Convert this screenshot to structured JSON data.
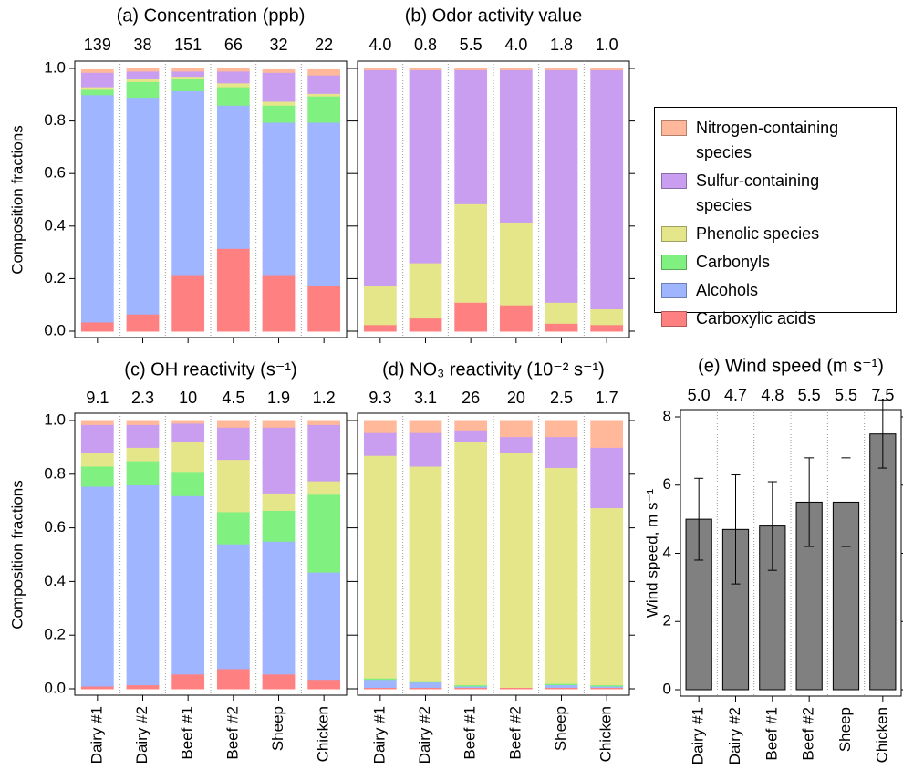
{
  "chart_data": [
    {
      "type": "stacked_bar",
      "title": "(a)  Concentration (ppb)",
      "ylabel": "Composition fractions",
      "top_labels": [
        "139",
        "38",
        "151",
        "66",
        "32",
        "22"
      ],
      "ylim": [
        0,
        1
      ],
      "yticks": [
        {
          "value": 0,
          "label": "0.0"
        },
        0.2,
        0.4,
        0.6,
        0.8,
        {
          "value": 1,
          "label": "1.0"
        }
      ],
      "ytick_labels": true,
      "series": [
        {
          "name": "Carboxylic acids",
          "color": "#ff8080",
          "values": [
            0.035,
            0.065,
            0.215,
            0.315,
            0.215,
            0.175
          ]
        },
        {
          "name": "Alcohols",
          "color": "#9fb5ff",
          "values": [
            0.865,
            0.825,
            0.7,
            0.545,
            0.58,
            0.62
          ]
        },
        {
          "name": "Carbonyls",
          "color": "#80f080",
          "values": [
            0.02,
            0.06,
            0.045,
            0.07,
            0.065,
            0.1
          ]
        },
        {
          "name": "Phenolic species",
          "color": "#e5e58a",
          "values": [
            0.01,
            0.01,
            0.01,
            0.015,
            0.015,
            0.01
          ]
        },
        {
          "name": "Sulfur-containing species",
          "color": "#c99ef0",
          "values": [
            0.055,
            0.03,
            0.02,
            0.045,
            0.11,
            0.07
          ]
        },
        {
          "name": "Nitrogen-containing species",
          "color": "#ffb899",
          "values": [
            0.01,
            0.01,
            0.01,
            0.01,
            0.01,
            0.02
          ]
        }
      ]
    },
    {
      "type": "stacked_bar",
      "title": "(b)  Odor activity value",
      "top_labels": [
        "4.0",
        "0.8",
        "5.5",
        "4.0",
        "1.8",
        "1.0"
      ],
      "ylim": [
        0,
        1
      ],
      "yticks": [
        0,
        0.2,
        0.4,
        0.6,
        0.8,
        1
      ],
      "ytick_labels": false,
      "series": [
        {
          "color": "#ff8080",
          "values": [
            0.025,
            0.05,
            0.11,
            0.1,
            0.03,
            0.025
          ]
        },
        {
          "color": "#9fb5ff",
          "values": [
            0,
            0,
            0,
            0,
            0,
            0
          ]
        },
        {
          "color": "#80f080",
          "values": [
            0,
            0,
            0,
            0,
            0,
            0
          ]
        },
        {
          "color": "#e5e58a",
          "values": [
            0.15,
            0.21,
            0.375,
            0.315,
            0.08,
            0.06
          ]
        },
        {
          "color": "#c99ef0",
          "values": [
            0.82,
            0.735,
            0.51,
            0.58,
            0.885,
            0.91
          ]
        },
        {
          "color": "#ffb899",
          "values": [
            0.005,
            0.005,
            0.005,
            0.005,
            0.005,
            0.005
          ]
        }
      ]
    },
    {
      "type": "stacked_bar",
      "title": "(c)  OH reactivity (s⁻¹)",
      "ylabel": "Composition fractions",
      "categories": [
        "Dairy #1",
        "Dairy #2",
        "Beef #1",
        "Beef #2",
        "Sheep",
        "Chicken"
      ],
      "top_labels": [
        "9.1",
        "2.3",
        "10",
        "4.5",
        "1.9",
        "1.2"
      ],
      "ylim": [
        0,
        1
      ],
      "yticks": [
        {
          "value": 0,
          "label": "0.0"
        },
        0.2,
        0.4,
        0.6,
        0.8,
        {
          "value": 1,
          "label": "1.0"
        }
      ],
      "ytick_labels": true,
      "series": [
        {
          "color": "#ff8080",
          "values": [
            0.01,
            0.015,
            0.055,
            0.075,
            0.055,
            0.035
          ]
        },
        {
          "color": "#9fb5ff",
          "values": [
            0.745,
            0.745,
            0.665,
            0.465,
            0.495,
            0.4
          ]
        },
        {
          "color": "#80f080",
          "values": [
            0.075,
            0.09,
            0.09,
            0.12,
            0.115,
            0.29
          ]
        },
        {
          "color": "#e5e58a",
          "values": [
            0.05,
            0.05,
            0.11,
            0.195,
            0.065,
            0.05
          ]
        },
        {
          "color": "#c99ef0",
          "values": [
            0.105,
            0.085,
            0.07,
            0.12,
            0.245,
            0.21
          ]
        },
        {
          "color": "#ffb899",
          "values": [
            0.015,
            0.015,
            0.01,
            0.025,
            0.025,
            0.015
          ]
        }
      ]
    },
    {
      "type": "stacked_bar",
      "title": "(d)  NO₃ reactivity (10⁻² s⁻¹)",
      "categories": [
        "Dairy #1",
        "Dairy #2",
        "Beef #1",
        "Beef #2",
        "Sheep",
        "Chicken"
      ],
      "top_labels": [
        "9.3",
        "3.1",
        "26",
        "20",
        "2.5",
        "1.7"
      ],
      "ylim": [
        0,
        1
      ],
      "yticks": [
        0,
        0.2,
        0.4,
        0.6,
        0.8,
        1
      ],
      "ytick_labels": false,
      "series": [
        {
          "color": "#ff8080",
          "values": [
            0.005,
            0.005,
            0.005,
            0.005,
            0.005,
            0.005
          ]
        },
        {
          "color": "#9fb5ff",
          "values": [
            0.03,
            0.02,
            0.005,
            0,
            0.01,
            0.005
          ]
        },
        {
          "color": "#80f080",
          "values": [
            0.005,
            0.005,
            0.005,
            0,
            0.005,
            0.005
          ]
        },
        {
          "color": "#e5e58a",
          "values": [
            0.83,
            0.8,
            0.905,
            0.875,
            0.805,
            0.66
          ]
        },
        {
          "color": "#c99ef0",
          "values": [
            0.085,
            0.125,
            0.045,
            0.06,
            0.115,
            0.225
          ]
        },
        {
          "color": "#ffb899",
          "values": [
            0.045,
            0.045,
            0.035,
            0.06,
            0.06,
            0.1
          ]
        }
      ]
    },
    {
      "type": "bar",
      "title": "(e)  Wind speed (m  s⁻¹)",
      "ylabel": "Wind speed, m s⁻¹",
      "categories": [
        "Dairy #1",
        "Dairy #2",
        "Beef #1",
        "Beef #2",
        "Sheep",
        "Chicken"
      ],
      "values": [
        5.0,
        4.7,
        4.8,
        5.5,
        5.5,
        7.5
      ],
      "value_labels": [
        "5.0",
        "4.7",
        "4.8",
        "5.5",
        "5.5",
        "7.5"
      ],
      "errors": [
        1.2,
        1.6,
        1.3,
        1.3,
        1.3,
        1.0
      ],
      "color": "#808080",
      "ylim": [
        0,
        8
      ],
      "yticks": [
        0,
        2,
        4,
        6,
        8
      ],
      "ytick_labels": true
    }
  ]
}
